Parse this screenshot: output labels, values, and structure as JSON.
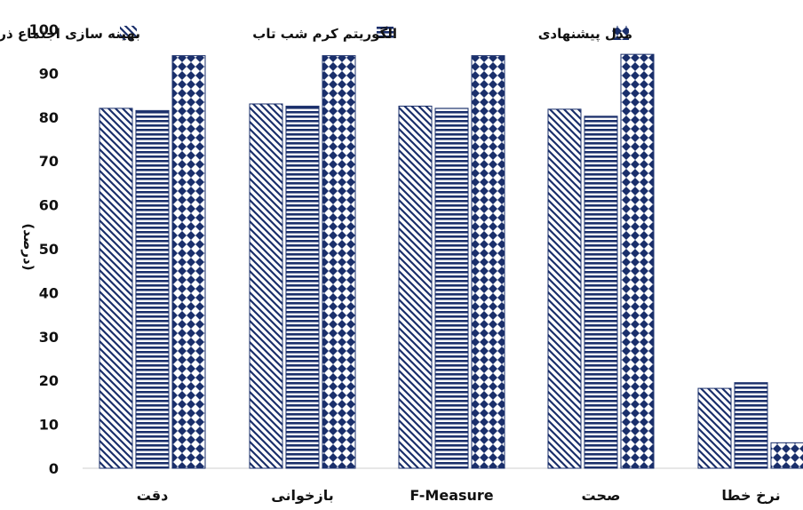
{
  "chart_data": {
    "type": "bar",
    "ylabel": "(درصد)",
    "ylim": [
      0,
      100
    ],
    "yticks": [
      "0",
      "10",
      "20",
      "30",
      "40",
      "50",
      "60",
      "70",
      "80",
      "90",
      "100"
    ],
    "grid": false,
    "legend_position": "top",
    "categories": [
      "دقت",
      "بازخوانی",
      "F-Measure",
      "صحت",
      "نرخ خطا"
    ],
    "series": [
      {
        "name": "بهینه سازی اجتماع ذرات",
        "pattern": "diagonal-hatch",
        "color": "#1a2f6b",
        "values": [
          82,
          83,
          82.5,
          81.8,
          18.2
        ]
      },
      {
        "name": "الگوریتم کرم شب تاب",
        "pattern": "horizontal-stripes",
        "color": "#1a2f6b",
        "values": [
          81.5,
          82.5,
          82,
          80.2,
          19.5
        ]
      },
      {
        "name": "مدل پیشنهادی",
        "pattern": "diamond-checker",
        "color": "#1a2f6b",
        "values": [
          94,
          94,
          94,
          94.3,
          5.8
        ]
      }
    ]
  }
}
